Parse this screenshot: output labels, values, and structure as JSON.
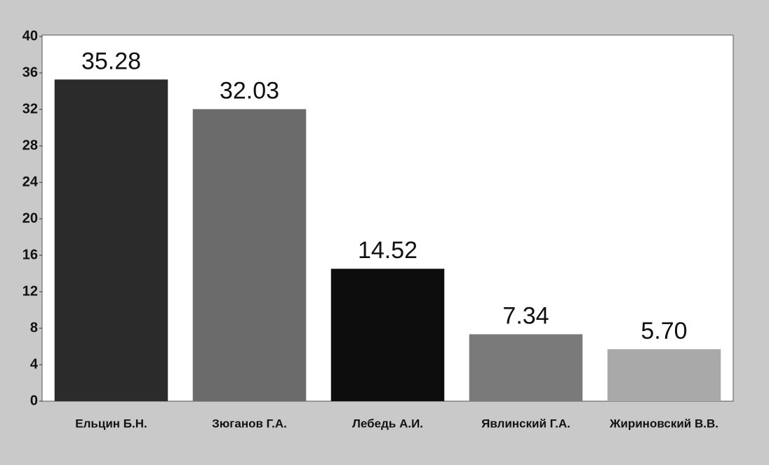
{
  "chart_data": {
    "type": "bar",
    "categories": [
      "Ельцин Б.Н.",
      "Зюганов Г.А.",
      "Лебедь А.И.",
      "Явлинский Г.А.",
      "Жириновский В.В."
    ],
    "values": [
      35.28,
      32.03,
      14.52,
      7.34,
      5.7
    ],
    "value_labels": [
      "35.28",
      "32.03",
      "14.52",
      "7.34",
      "5.70"
    ],
    "colors": [
      "#2b2b2b",
      "#6b6b6b",
      "#0d0d0d",
      "#7a7a7a",
      "#a9a9a9"
    ],
    "ylim": [
      0,
      40
    ],
    "yticks": [
      0,
      4,
      8,
      12,
      16,
      20,
      24,
      28,
      32,
      36,
      40
    ],
    "grid": false
  }
}
